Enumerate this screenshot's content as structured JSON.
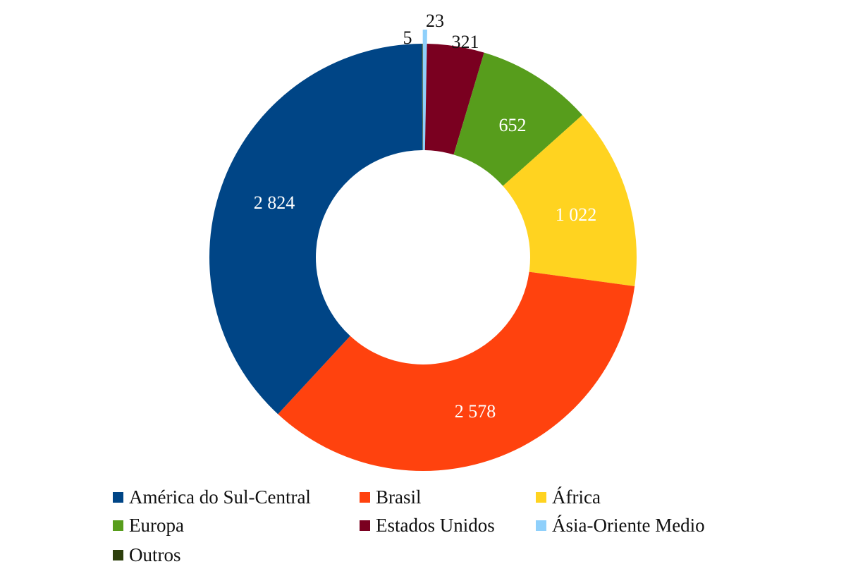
{
  "chart_data": {
    "type": "pie",
    "variant": "donut",
    "title": "",
    "slices": [
      {
        "label": "Outros",
        "value": 5,
        "display": "5",
        "color": "#2d3f0c",
        "label_color": "#111111"
      },
      {
        "label": "Ásia-Oriente Medio",
        "value": 23,
        "display": "23",
        "color": "#8fd0fb",
        "label_color": "#111111"
      },
      {
        "label": "Estados Unidos",
        "value": 321,
        "display": "321",
        "color": "#7a0020",
        "label_color": "#111111"
      },
      {
        "label": "Europa",
        "value": 652,
        "display": "652",
        "color": "#579d1c",
        "label_color": "#ffffff"
      },
      {
        "label": "África",
        "value": 1022,
        "display": "1 022",
        "color": "#ffd320",
        "label_color": "#ffffff"
      },
      {
        "label": "Brasil",
        "value": 2578,
        "display": "2 578",
        "color": "#ff420e",
        "label_color": "#ffffff"
      },
      {
        "label": "América do Sul-Central",
        "value": 2824,
        "display": "2 824",
        "color": "#004586",
        "label_color": "#ffffff"
      }
    ],
    "legend": {
      "placement": "bottom",
      "entries": [
        {
          "label": "América do Sul-Central",
          "color": "#004586"
        },
        {
          "label": "Brasil",
          "color": "#ff420e"
        },
        {
          "label": "África",
          "color": "#ffd320"
        },
        {
          "label": "Europa",
          "color": "#579d1c"
        },
        {
          "label": "Estados Unidos",
          "color": "#7a0020"
        },
        {
          "label": "Ásia-Oriente Medio",
          "color": "#8fd0fb"
        },
        {
          "label": "Outros",
          "color": "#2d3f0c"
        }
      ]
    }
  }
}
